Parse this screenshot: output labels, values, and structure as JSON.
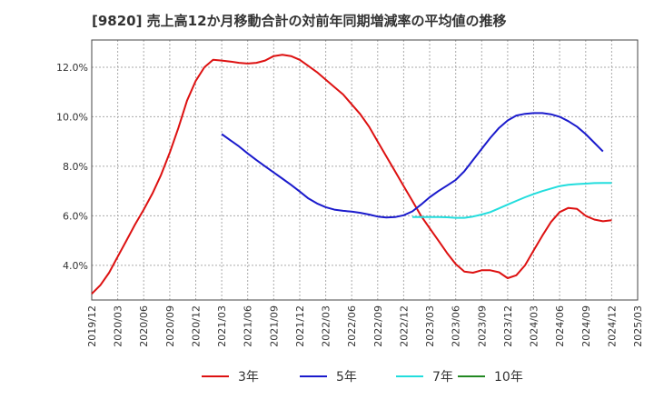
{
  "chart_data": {
    "type": "line",
    "title": "[9820]  売上高12か月移動合計の対前年同期増減率の平均値の推移",
    "xlabel": "",
    "ylabel": "",
    "ylim": [
      2.6,
      13.1
    ],
    "y_ticks": [
      "4.0%",
      "6.0%",
      "8.0%",
      "10.0%",
      "12.0%"
    ],
    "y_tick_values": [
      4,
      6,
      8,
      10,
      12
    ],
    "x_tick_labels": [
      "2019/12",
      "2020/03",
      "2020/06",
      "2020/09",
      "2020/12",
      "2021/03",
      "2021/06",
      "2021/09",
      "2021/12",
      "2022/03",
      "2022/06",
      "2022/09",
      "2022/12",
      "2023/03",
      "2023/06",
      "2023/09",
      "2023/12",
      "2024/03",
      "2024/06",
      "2024/09",
      "2024/12",
      "2025/03"
    ],
    "grid": true,
    "legend_position": "bottom",
    "series": [
      {
        "name": "3年",
        "color": "#dd1111",
        "points": [
          [
            "2019/12",
            2.85
          ],
          [
            "2020/01",
            3.2
          ],
          [
            "2020/02",
            3.7
          ],
          [
            "2020/03",
            4.35
          ],
          [
            "2020/04",
            5.0
          ],
          [
            "2020/05",
            5.65
          ],
          [
            "2020/06",
            6.25
          ],
          [
            "2020/07",
            6.9
          ],
          [
            "2020/08",
            7.65
          ],
          [
            "2020/09",
            8.55
          ],
          [
            "2020/10",
            9.55
          ],
          [
            "2020/11",
            10.65
          ],
          [
            "2020/12",
            11.45
          ],
          [
            "2021/01",
            12.0
          ],
          [
            "2021/02",
            12.3
          ],
          [
            "2021/03",
            12.27
          ],
          [
            "2021/04",
            12.23
          ],
          [
            "2021/05",
            12.18
          ],
          [
            "2021/06",
            12.15
          ],
          [
            "2021/07",
            12.18
          ],
          [
            "2021/08",
            12.27
          ],
          [
            "2021/09",
            12.45
          ],
          [
            "2021/10",
            12.5
          ],
          [
            "2021/11",
            12.45
          ],
          [
            "2021/12",
            12.3
          ],
          [
            "2022/01",
            12.05
          ],
          [
            "2022/02",
            11.8
          ],
          [
            "2022/03",
            11.5
          ],
          [
            "2022/04",
            11.2
          ],
          [
            "2022/05",
            10.9
          ],
          [
            "2022/06",
            10.5
          ],
          [
            "2022/07",
            10.1
          ],
          [
            "2022/08",
            9.6
          ],
          [
            "2022/09",
            9.0
          ],
          [
            "2022/10",
            8.4
          ],
          [
            "2022/11",
            7.8
          ],
          [
            "2022/12",
            7.2
          ],
          [
            "2023/01",
            6.6
          ],
          [
            "2023/02",
            6.0
          ],
          [
            "2023/03",
            5.5
          ],
          [
            "2023/04",
            5.0
          ],
          [
            "2023/05",
            4.5
          ],
          [
            "2023/06",
            4.05
          ],
          [
            "2023/07",
            3.75
          ],
          [
            "2023/08",
            3.7
          ],
          [
            "2023/09",
            3.8
          ],
          [
            "2023/10",
            3.8
          ],
          [
            "2023/11",
            3.72
          ],
          [
            "2023/12",
            3.48
          ],
          [
            "2024/01",
            3.6
          ],
          [
            "2024/02",
            4.0
          ],
          [
            "2024/03",
            4.6
          ],
          [
            "2024/04",
            5.2
          ],
          [
            "2024/05",
            5.75
          ],
          [
            "2024/06",
            6.15
          ],
          [
            "2024/07",
            6.32
          ],
          [
            "2024/08",
            6.28
          ],
          [
            "2024/09",
            6.0
          ],
          [
            "2024/10",
            5.85
          ],
          [
            "2024/11",
            5.78
          ],
          [
            "2024/12",
            5.82
          ]
        ]
      },
      {
        "name": "5年",
        "color": "#1a1acc",
        "points": [
          [
            "2021/03",
            9.3
          ],
          [
            "2021/04",
            9.05
          ],
          [
            "2021/05",
            8.8
          ],
          [
            "2021/06",
            8.52
          ],
          [
            "2021/07",
            8.25
          ],
          [
            "2021/08",
            8.0
          ],
          [
            "2021/09",
            7.75
          ],
          [
            "2021/10",
            7.5
          ],
          [
            "2021/11",
            7.25
          ],
          [
            "2021/12",
            6.98
          ],
          [
            "2022/01",
            6.7
          ],
          [
            "2022/02",
            6.5
          ],
          [
            "2022/03",
            6.35
          ],
          [
            "2022/04",
            6.25
          ],
          [
            "2022/05",
            6.2
          ],
          [
            "2022/06",
            6.17
          ],
          [
            "2022/07",
            6.12
          ],
          [
            "2022/08",
            6.05
          ],
          [
            "2022/09",
            5.97
          ],
          [
            "2022/10",
            5.93
          ],
          [
            "2022/11",
            5.95
          ],
          [
            "2022/12",
            6.02
          ],
          [
            "2023/01",
            6.18
          ],
          [
            "2023/02",
            6.45
          ],
          [
            "2023/03",
            6.75
          ],
          [
            "2023/04",
            7.0
          ],
          [
            "2023/05",
            7.22
          ],
          [
            "2023/06",
            7.45
          ],
          [
            "2023/07",
            7.8
          ],
          [
            "2023/08",
            8.25
          ],
          [
            "2023/09",
            8.7
          ],
          [
            "2023/10",
            9.15
          ],
          [
            "2023/11",
            9.55
          ],
          [
            "2023/12",
            9.85
          ],
          [
            "2024/01",
            10.05
          ],
          [
            "2024/02",
            10.12
          ],
          [
            "2024/03",
            10.15
          ],
          [
            "2024/04",
            10.15
          ],
          [
            "2024/05",
            10.1
          ],
          [
            "2024/06",
            10.0
          ],
          [
            "2024/07",
            9.82
          ],
          [
            "2024/08",
            9.6
          ],
          [
            "2024/09",
            9.3
          ],
          [
            "2024/10",
            8.95
          ],
          [
            "2024/11",
            8.6
          ]
        ]
      },
      {
        "name": "7年",
        "color": "#22dddd",
        "points": [
          [
            "2023/01",
            5.95
          ],
          [
            "2023/02",
            5.95
          ],
          [
            "2023/03",
            5.95
          ],
          [
            "2023/04",
            5.95
          ],
          [
            "2023/05",
            5.94
          ],
          [
            "2023/06",
            5.92
          ],
          [
            "2023/07",
            5.92
          ],
          [
            "2023/08",
            5.97
          ],
          [
            "2023/09",
            6.05
          ],
          [
            "2023/10",
            6.15
          ],
          [
            "2023/11",
            6.3
          ],
          [
            "2023/12",
            6.45
          ],
          [
            "2024/01",
            6.6
          ],
          [
            "2024/02",
            6.75
          ],
          [
            "2024/03",
            6.88
          ],
          [
            "2024/04",
            7.0
          ],
          [
            "2024/05",
            7.1
          ],
          [
            "2024/06",
            7.2
          ],
          [
            "2024/07",
            7.25
          ],
          [
            "2024/08",
            7.28
          ],
          [
            "2024/09",
            7.3
          ],
          [
            "2024/10",
            7.32
          ],
          [
            "2024/11",
            7.33
          ],
          [
            "2024/12",
            7.33
          ]
        ]
      },
      {
        "name": "10年",
        "color": "#228822",
        "points": []
      }
    ]
  }
}
